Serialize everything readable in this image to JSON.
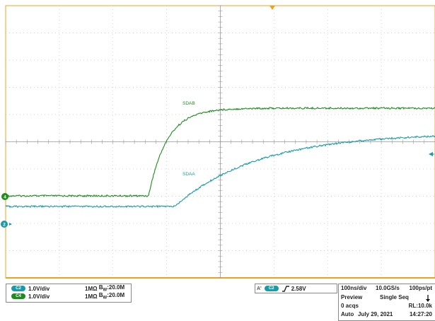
{
  "colors": {
    "ch1": "#1e8c1e",
    "ch2": "#1a9aa8",
    "trigger_marker": "#f0a020",
    "frame": "#f0a020",
    "grid": "#c8c8c8",
    "background": "#ffffff"
  },
  "traces": {
    "ch1_label": "SDAB",
    "ch2_label": "SDAA"
  },
  "markers": {
    "ch1_ground": "4",
    "ch2_ground": "2",
    "trigger_icon": "trigger-position-icon",
    "level_icon": "trigger-level-arrow-icon"
  },
  "channels": [
    {
      "tag": "C2",
      "scale": "1.0V/div",
      "coupling": "1MΩ",
      "bw_prefix": "B",
      "bw_sub": "W",
      "bw_value": ":20.0M"
    },
    {
      "tag": "C4",
      "scale": "1.0V/div",
      "coupling": "1MΩ",
      "bw_prefix": "B",
      "bw_sub": "W",
      "bw_value": ":20.0M"
    }
  ],
  "trigger": {
    "prefix": "A'",
    "source": "C2",
    "slope_icon": "rising-edge-icon",
    "level": "2.58V"
  },
  "acquisition": {
    "timebase": "100ns/div",
    "sample_rate": "10.0GS/s",
    "resolution": "100ps/pt",
    "mode": "Preview",
    "sequence": "Single Seq",
    "acqs": "0 acqs",
    "record_length": "RL:10.0k",
    "trigger_mode": "Auto",
    "date": "July 29, 2021",
    "time": "14:27:20"
  }
}
